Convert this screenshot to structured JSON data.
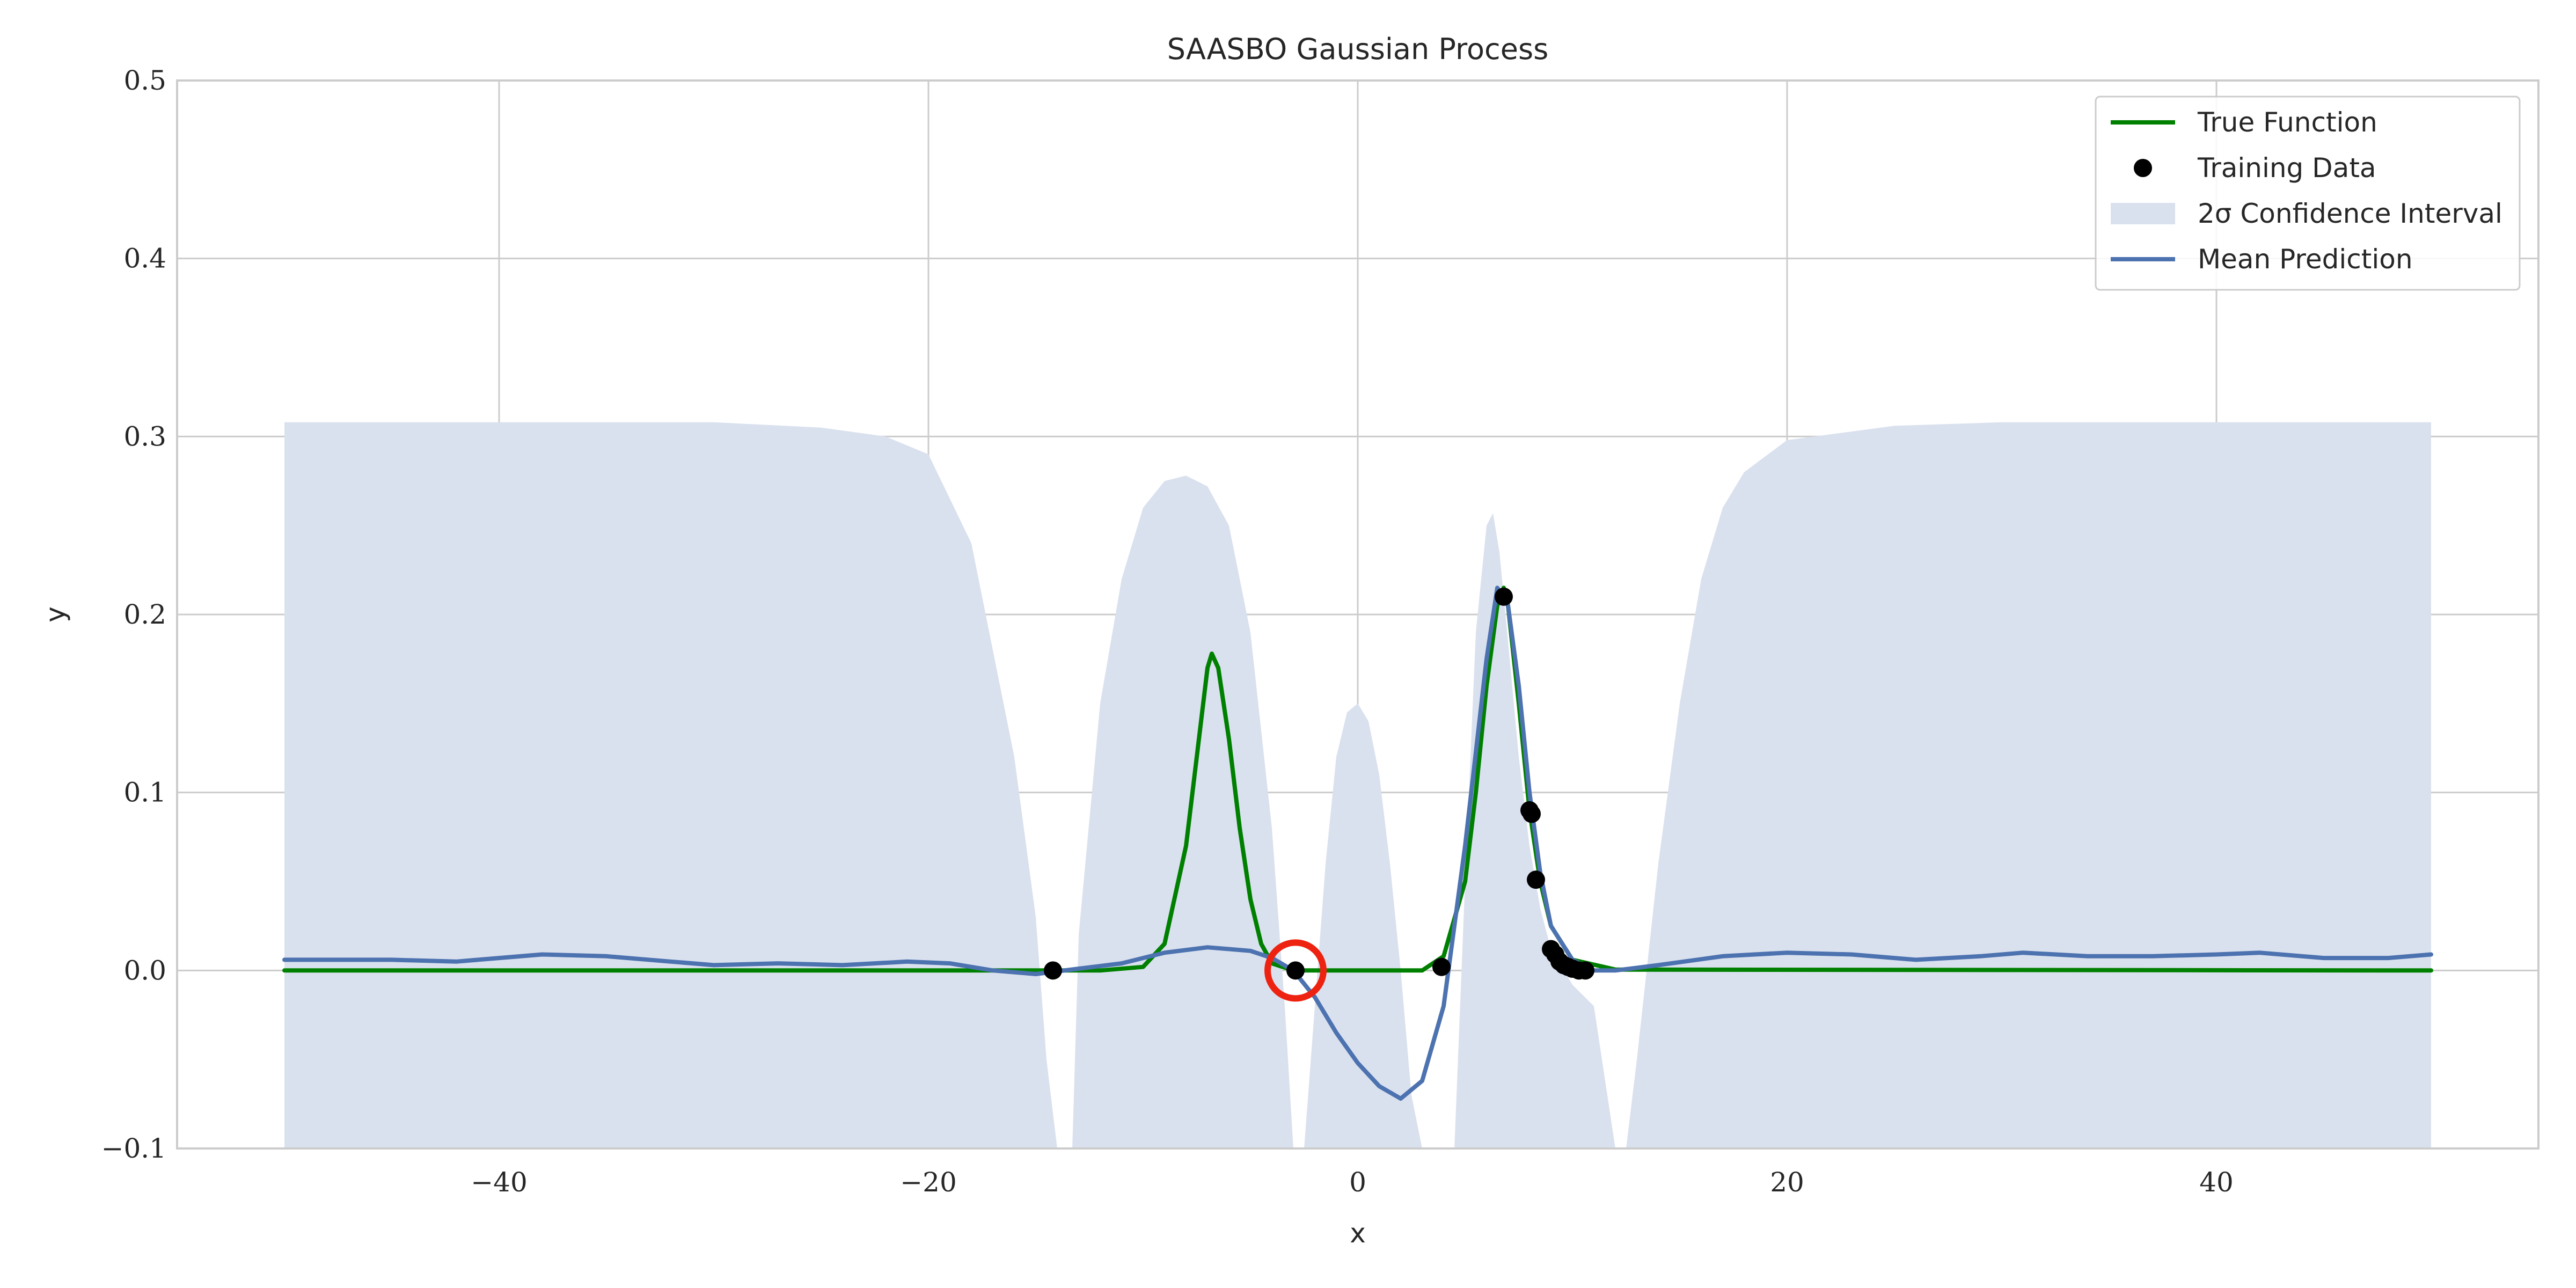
{
  "chart_data": {
    "type": "line",
    "title": "SAASBO Gaussian Process",
    "xlabel": "x",
    "ylabel": "y",
    "xlim": [
      -55,
      55
    ],
    "ylim": [
      -0.1,
      0.5
    ],
    "grid": true,
    "legend_position": "top-right",
    "x_ticks": [
      -40,
      -20,
      0,
      20,
      40
    ],
    "x_tick_labels": [
      "−40",
      "−20",
      "0",
      "20",
      "40"
    ],
    "y_ticks": [
      -0.1,
      0.0,
      0.1,
      0.2,
      0.3,
      0.4,
      0.5
    ],
    "y_tick_labels": [
      "−0.1",
      "0.0",
      "0.1",
      "0.2",
      "0.3",
      "0.4",
      "0.5"
    ],
    "colors": {
      "true_function": "#008000",
      "mean_prediction": "#4c72b0",
      "confidence": "#dae1ee",
      "training_data": "#000000",
      "highlight": "#ee2211"
    },
    "legend": [
      {
        "label": "True Function",
        "kind": "line",
        "color": "#008000"
      },
      {
        "label": "Training Data",
        "kind": "marker",
        "color": "#000000"
      },
      {
        "label": "2σ Confidence Interval",
        "kind": "patch",
        "color": "#dae1ee"
      },
      {
        "label": "Mean Prediction",
        "kind": "line",
        "color": "#4c72b0"
      }
    ],
    "series": [
      {
        "name": "True Function",
        "x": [
          -50,
          -12,
          -10,
          -9,
          -8,
          -7.5,
          -7,
          -6.8,
          -6.5,
          -6,
          -5.5,
          -5,
          -4.5,
          -4,
          -3,
          3,
          4,
          5,
          5.5,
          6,
          6.5,
          6.8,
          7,
          7.5,
          8,
          8.5,
          9,
          10,
          12,
          50
        ],
        "y": [
          0,
          0,
          0.002,
          0.015,
          0.07,
          0.12,
          0.17,
          0.178,
          0.17,
          0.13,
          0.08,
          0.04,
          0.015,
          0.004,
          0,
          0,
          0.008,
          0.05,
          0.1,
          0.16,
          0.205,
          0.215,
          0.205,
          0.15,
          0.09,
          0.05,
          0.025,
          0.006,
          0.0005,
          0
        ]
      },
      {
        "name": "Mean Prediction",
        "x": [
          -50,
          -45,
          -42,
          -40,
          -38,
          -35,
          -32,
          -30,
          -27,
          -24,
          -21,
          -19,
          -17,
          -15,
          -13,
          -11,
          -9,
          -7,
          -5,
          -4,
          -3,
          -2,
          -1,
          0,
          1,
          2,
          3,
          4,
          5,
          6,
          6.5,
          7,
          7.5,
          8,
          8.5,
          9,
          10,
          11,
          12,
          14,
          17,
          20,
          23,
          26,
          29,
          31,
          34,
          37,
          40,
          42,
          45,
          48,
          50
        ],
        "y": [
          0.006,
          0.006,
          0.005,
          0.007,
          0.009,
          0.008,
          0.005,
          0.003,
          0.004,
          0.003,
          0.005,
          0.004,
          0.0,
          -0.002,
          0.001,
          0.004,
          0.01,
          0.013,
          0.011,
          0.007,
          0.0,
          -0.015,
          -0.035,
          -0.052,
          -0.065,
          -0.072,
          -0.062,
          -0.02,
          0.07,
          0.175,
          0.215,
          0.205,
          0.16,
          0.1,
          0.055,
          0.025,
          0.006,
          0.0,
          0.0,
          0.003,
          0.008,
          0.01,
          0.009,
          0.006,
          0.008,
          0.01,
          0.008,
          0.008,
          0.009,
          0.01,
          0.007,
          0.007,
          0.009
        ]
      }
    ],
    "confidence_interval": {
      "name": "2σ Confidence Interval",
      "x": [
        -50,
        -30,
        -25,
        -22,
        -20,
        -18,
        -16,
        -15,
        -14.5,
        -14,
        -13.3,
        -13,
        -12,
        -11,
        -10,
        -9,
        -8,
        -7,
        -6,
        -5,
        -4,
        -3.4,
        -3,
        -2.5,
        -1.5,
        -1,
        -0.5,
        0,
        0.5,
        1,
        1.5,
        2,
        2.5,
        3,
        3.5,
        4,
        4.5,
        5,
        5.5,
        6,
        6.3,
        6.6,
        7,
        7.5,
        8,
        8.5,
        9,
        10,
        11,
        12,
        12.5,
        13,
        14,
        15,
        16,
        17,
        18,
        20,
        25,
        30,
        50
      ],
      "upper": [
        0.308,
        0.308,
        0.305,
        0.3,
        0.29,
        0.24,
        0.12,
        0.03,
        -0.05,
        -0.1,
        -0.1,
        0.02,
        0.15,
        0.22,
        0.26,
        0.275,
        0.278,
        0.272,
        0.25,
        0.19,
        0.08,
        -0.02,
        -0.1,
        -0.1,
        0.06,
        0.12,
        0.145,
        0.15,
        0.14,
        0.11,
        0.06,
        0.0,
        -0.07,
        -0.1,
        -0.1,
        -0.1,
        -0.1,
        0.05,
        0.19,
        0.25,
        0.257,
        0.235,
        0.185,
        0.12,
        0.07,
        0.035,
        0.012,
        -0.008,
        -0.02,
        -0.1,
        -0.1,
        -0.05,
        0.06,
        0.15,
        0.22,
        0.26,
        0.28,
        0.298,
        0.306,
        0.308,
        0.308
      ],
      "lower": [
        -0.1,
        -0.1,
        -0.1,
        -0.1,
        -0.1,
        -0.1,
        -0.1,
        -0.1,
        -0.1,
        -0.1,
        -0.1,
        -0.1,
        -0.1,
        -0.1,
        -0.1,
        -0.1,
        -0.1,
        -0.1,
        -0.1,
        -0.1,
        -0.1,
        -0.1,
        -0.1,
        -0.1,
        -0.1,
        -0.1,
        -0.1,
        -0.1,
        -0.1,
        -0.1,
        -0.1,
        -0.1,
        -0.1,
        -0.1,
        -0.1,
        -0.1,
        -0.1,
        -0.1,
        -0.1,
        -0.1,
        -0.1,
        -0.1,
        -0.1,
        -0.1,
        -0.1,
        -0.1,
        -0.1,
        -0.1,
        -0.1,
        -0.1,
        -0.1,
        -0.1,
        -0.1,
        -0.1,
        -0.1,
        -0.1,
        -0.1,
        -0.1,
        -0.1,
        -0.1,
        -0.1
      ]
    },
    "training_data": {
      "name": "Training Data",
      "x": [
        -14.2,
        -2.9,
        3.9,
        6.8,
        8.0,
        8.1,
        8.3,
        9.0,
        9.2,
        9.4,
        9.6,
        9.8,
        10.0,
        10.3,
        10.6
      ],
      "y": [
        0.0,
        0.0,
        0.002,
        0.21,
        0.09,
        0.088,
        0.051,
        0.012,
        0.009,
        0.005,
        0.003,
        0.002,
        0.001,
        0.0,
        0.0
      ]
    },
    "highlight": {
      "x": -2.9,
      "y": 0.0
    }
  }
}
